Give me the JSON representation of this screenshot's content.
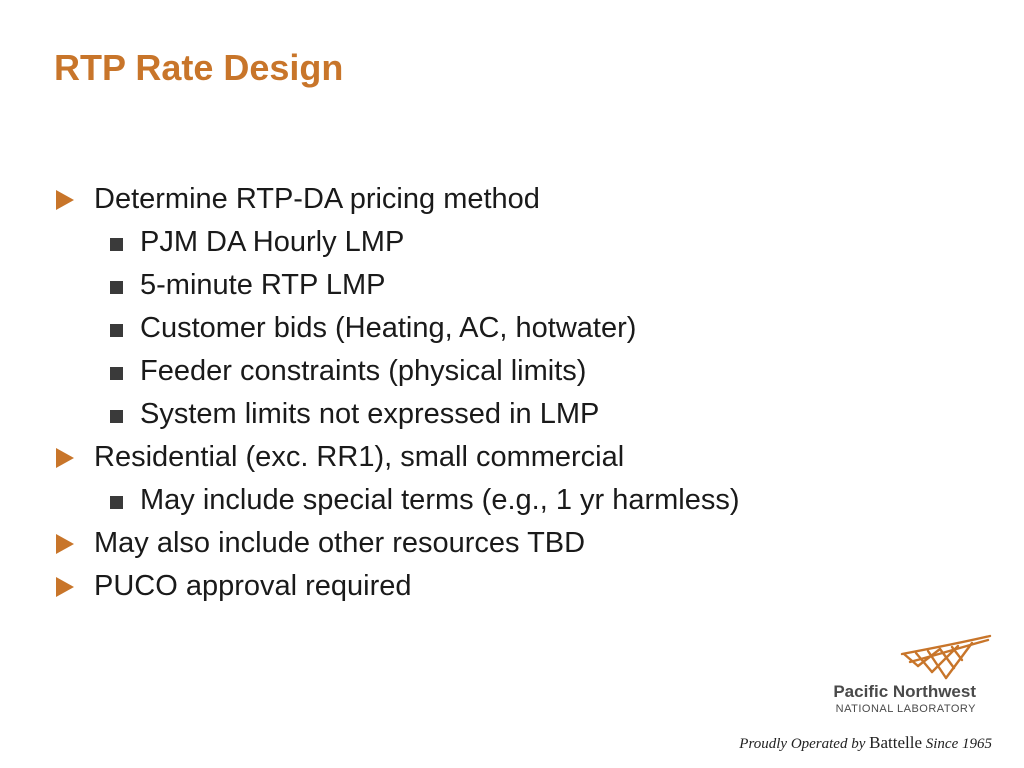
{
  "slide": {
    "title": "RTP Rate Design"
  },
  "bullets": [
    {
      "level": 1,
      "text": "Determine RTP-DA pricing method"
    },
    {
      "level": 2,
      "text": "PJM DA Hourly LMP"
    },
    {
      "level": 2,
      "text": "5-minute RTP LMP"
    },
    {
      "level": 2,
      "text": "Customer bids (Heating, AC, hotwater)"
    },
    {
      "level": 2,
      "text": "Feeder constraints (physical limits)"
    },
    {
      "level": 2,
      "text": "System limits not expressed in LMP"
    },
    {
      "level": 1,
      "text": "Residential (exc. RR1), small commercial"
    },
    {
      "level": 2,
      "text": "May include special terms (e.g., 1 yr harmless)"
    },
    {
      "level": 1,
      "text": "May also include other resources TBD"
    },
    {
      "level": 1,
      "text": "PUCO approval required"
    }
  ],
  "logo": {
    "name": "Pacific Northwest",
    "subtitle": "NATIONAL LABORATORY",
    "mark_icon": "pnnl-logo-mark-icon"
  },
  "footer": {
    "prefix": "Proudly Operated by",
    "brand": "Battelle",
    "suffix": "Since 1965"
  },
  "colors": {
    "accent": "#c8752a",
    "text": "#1a1a1a",
    "secondary_bullet": "#3a3a3a"
  }
}
